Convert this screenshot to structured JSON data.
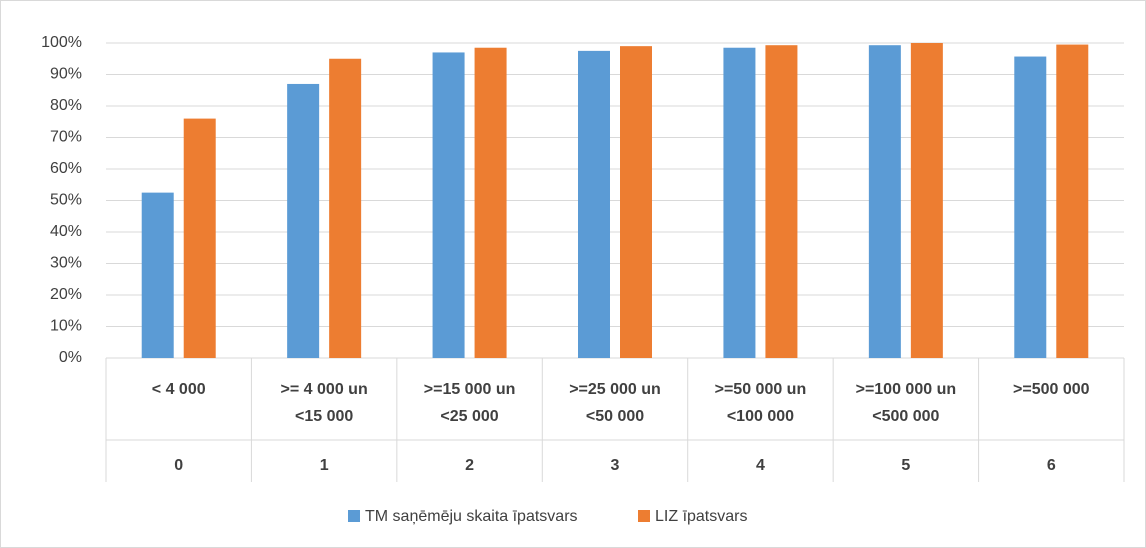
{
  "chart_data": {
    "type": "bar",
    "categories": [
      [
        "< 4 000"
      ],
      [
        ">= 4 000 un",
        "<15 000"
      ],
      [
        ">=15 000 un",
        "<25 000"
      ],
      [
        ">=25 000 un",
        "<50 000"
      ],
      [
        ">=50 000 un",
        "<100 000"
      ],
      [
        ">=100 000 un",
        "<500 000"
      ],
      [
        ">=500 000"
      ]
    ],
    "category_groups": [
      "0",
      "1",
      "2",
      "3",
      "4",
      "5",
      "6"
    ],
    "series": [
      {
        "name": "TM saņēmēju skaita īpatsvars",
        "color": "#5b9bd5",
        "values": [
          52.5,
          87,
          97,
          97.5,
          98.5,
          99.3,
          95.7
        ]
      },
      {
        "name": "LIZ īpatsvars",
        "color": "#ed7d31",
        "values": [
          76,
          95,
          98.5,
          99,
          99.3,
          100,
          99.5
        ]
      }
    ],
    "ylim": [
      0,
      100
    ],
    "yticks": [
      {
        "value": 0,
        "label": "0%"
      },
      {
        "value": 10,
        "label": "10%"
      },
      {
        "value": 20,
        "label": "20%"
      },
      {
        "value": 30,
        "label": "30%"
      },
      {
        "value": 40,
        "label": "40%"
      },
      {
        "value": 50,
        "label": "50%"
      },
      {
        "value": 60,
        "label": "60%"
      },
      {
        "value": 70,
        "label": "70%"
      },
      {
        "value": 80,
        "label": "80%"
      },
      {
        "value": 90,
        "label": "90%"
      },
      {
        "value": 100,
        "label": "100%"
      }
    ],
    "grid": true,
    "legend": "bottom"
  }
}
